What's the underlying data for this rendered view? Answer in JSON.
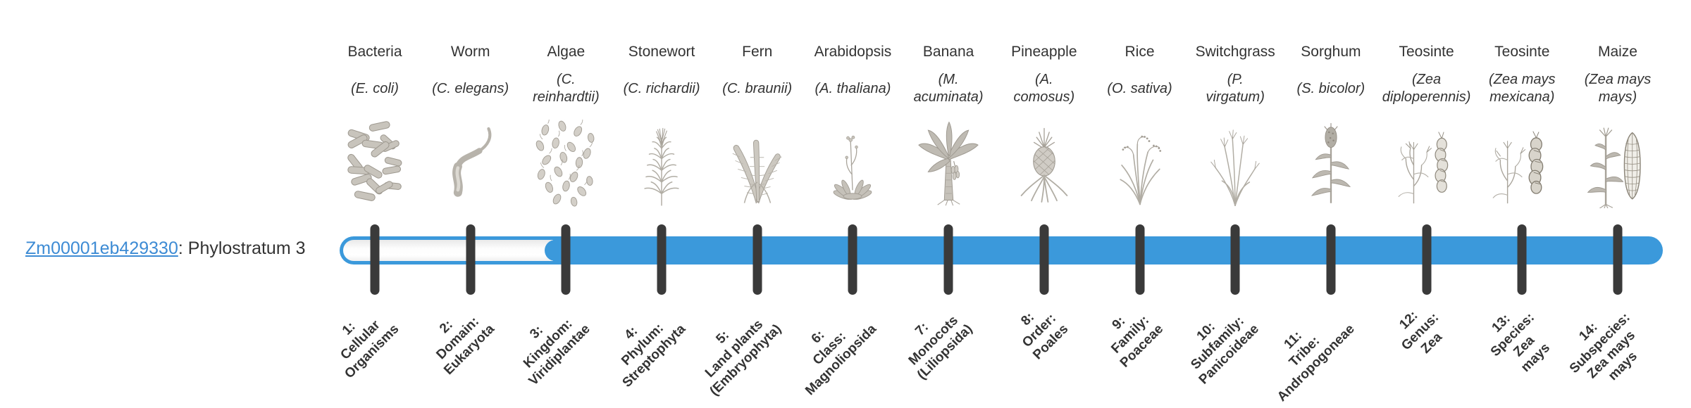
{
  "gene": {
    "id": "Zm00001eb429330",
    "separator": ": ",
    "phylostratum_label": "Phylostratum 3",
    "phylostratum": 3
  },
  "colors": {
    "bar_fill": "#3b99db",
    "bar_track": "#ffffff",
    "tick": "#3a3a3a",
    "link_text": "#3d8bd4",
    "label_text": "#333333"
  },
  "strata": [
    {
      "num": 1,
      "taxon": "1:\nCellular\nOrganisms",
      "organism": {
        "common": "Bacteria",
        "scientific": "(E. coli)"
      },
      "icon": "bacteria-icon"
    },
    {
      "num": 2,
      "taxon": "2:\nDomain:\nEukaryota",
      "organism": {
        "common": "Worm",
        "scientific": "(C. elegans)"
      },
      "icon": "worm-icon"
    },
    {
      "num": 3,
      "taxon": "3:\nKingdom:\nViridiplantae",
      "organism": {
        "common": "Algae",
        "scientific": "(C.\nreinhardtii)"
      },
      "icon": "algae-icon"
    },
    {
      "num": 4,
      "taxon": "4:\nPhylum:\nStreptophyta",
      "organism": {
        "common": "Stonewort",
        "scientific": "(C. richardii)"
      },
      "icon": "stonewort-icon"
    },
    {
      "num": 5,
      "taxon": "5:\nLand plants\n(Embryophyta)",
      "organism": {
        "common": "Fern",
        "scientific": "(C. braunii)"
      },
      "icon": "fern-icon"
    },
    {
      "num": 6,
      "taxon": "6:\nClass:\nMagnoliopsida",
      "organism": {
        "common": "Arabidopsis",
        "scientific": "(A. thaliana)"
      },
      "icon": "arabidopsis-icon"
    },
    {
      "num": 7,
      "taxon": "7:\nMonocots\n(Liliopsida)",
      "organism": {
        "common": "Banana",
        "scientific": "(M.\nacuminata)"
      },
      "icon": "banana-icon"
    },
    {
      "num": 8,
      "taxon": "8:\nOrder:\nPoales",
      "organism": {
        "common": "Pineapple",
        "scientific": "(A.\ncomosus)"
      },
      "icon": "pineapple-icon"
    },
    {
      "num": 9,
      "taxon": "9:\nFamily:\nPoaceae",
      "organism": {
        "common": "Rice",
        "scientific": "(O. sativa)"
      },
      "icon": "rice-icon"
    },
    {
      "num": 10,
      "taxon": "10:\nSubfamily:\nPanicoideae",
      "organism": {
        "common": "Switchgrass",
        "scientific": "(P.\nvirgatum)"
      },
      "icon": "switchgrass-icon"
    },
    {
      "num": 11,
      "taxon": "11:\nTribe:\nAndropogoneae",
      "organism": {
        "common": "Sorghum",
        "scientific": "(S. bicolor)"
      },
      "icon": "sorghum-icon"
    },
    {
      "num": 12,
      "taxon": "12:\nGenus:\nZea",
      "organism": {
        "common": "Teosinte",
        "scientific": "(Zea\ndiploperennis)"
      },
      "icon": "teosinte-diploperennis-icon"
    },
    {
      "num": 13,
      "taxon": "13:\nSpecies:\nZea\nmays",
      "organism": {
        "common": "Teosinte",
        "scientific": "(Zea mays\nmexicana)"
      },
      "icon": "teosinte-mexicana-icon"
    },
    {
      "num": 14,
      "taxon": "14:\nSubspecies:\nZea mays\nmays",
      "organism": {
        "common": "Maize",
        "scientific": "(Zea mays\nmays)"
      },
      "icon": "maize-icon"
    }
  ]
}
